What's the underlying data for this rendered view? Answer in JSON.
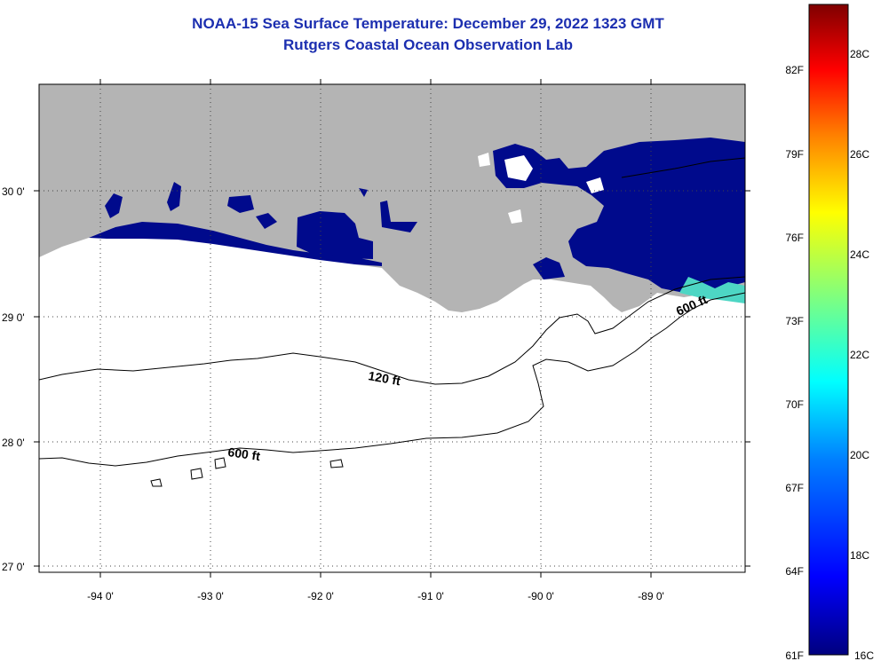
{
  "title": "NOAA-15 Sea Surface Temperature:  December 29, 2022 1323 GMT",
  "subtitle": "Rutgers Coastal Ocean Observation Lab",
  "map": {
    "lat_labels": [
      "30 0'",
      "29 0'",
      "28 0'",
      "27 0'"
    ],
    "lon_labels": [
      "-94 0'",
      "-93 0'",
      "-92 0'",
      "-91 0'",
      "-90 0'",
      "-89 0'"
    ],
    "contour_labels": [
      "120 ft",
      "600 ft",
      "600 ft"
    ]
  },
  "colorbar": {
    "fahrenheit": [
      "82F",
      "79F",
      "76F",
      "73F",
      "70F",
      "67F",
      "64F",
      "61F"
    ],
    "celsius": [
      "28C",
      "26C",
      "24C",
      "22C",
      "20C",
      "18C",
      "16C"
    ],
    "colors": [
      "#00007f",
      "#0000ff",
      "#007fff",
      "#00ffff",
      "#7fff7f",
      "#ffff00",
      "#ff7f00",
      "#ff0000",
      "#7f0000"
    ]
  },
  "colors": {
    "title": "#1c2fb0",
    "land": "#b4b4b4",
    "sst_cold": "#000a8c",
    "sst_warm": "#4dd6c4"
  }
}
